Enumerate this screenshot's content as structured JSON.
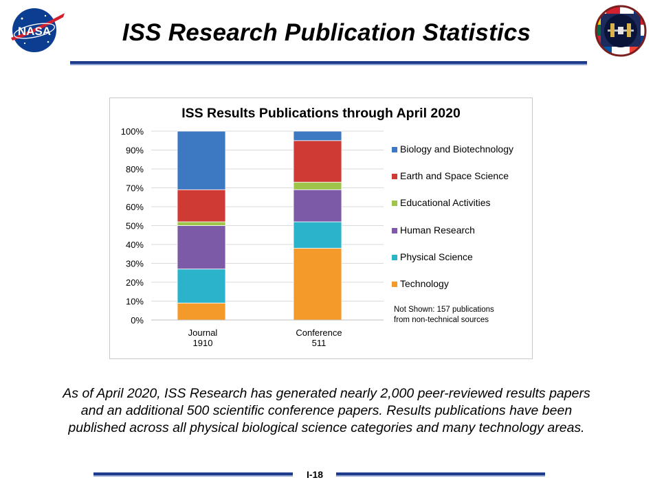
{
  "header": {
    "title": "ISS Research Publication Statistics",
    "nasa_logo_text": "NASA",
    "logo_left": "nasa-meatball-logo",
    "logo_right": "iss-flags-patch-logo"
  },
  "chart_data": {
    "type": "bar",
    "stacked": true,
    "percent_stacked": true,
    "title": "ISS Results Publications through April 2020",
    "categories": [
      "Journal\n1910",
      "Conference\n511"
    ],
    "category_lines": [
      [
        "Journal",
        "1910"
      ],
      [
        "Conference",
        "511"
      ]
    ],
    "series": [
      {
        "name": "Technology",
        "color": "#f39a2b",
        "values": [
          9,
          38
        ]
      },
      {
        "name": "Physical Science",
        "color": "#2bb3cc",
        "values": [
          18,
          14
        ]
      },
      {
        "name": "Human Research",
        "color": "#7c5aa8",
        "values": [
          23,
          17
        ]
      },
      {
        "name": "Educational Activities",
        "color": "#9ec44a",
        "values": [
          2,
          4
        ]
      },
      {
        "name": "Earth and Space Science",
        "color": "#cf3b34",
        "values": [
          17,
          22
        ]
      },
      {
        "name": "Biology and Biotechnology",
        "color": "#3d78c2",
        "values": [
          31,
          5
        ]
      }
    ],
    "legend_order": [
      "Biology and Biotechnology",
      "Earth and Space Science",
      "Educational Activities",
      "Human Research",
      "Physical Science",
      "Technology"
    ],
    "yticks": [
      "0%",
      "10%",
      "20%",
      "30%",
      "40%",
      "50%",
      "60%",
      "70%",
      "80%",
      "90%",
      "100%"
    ],
    "ylim": [
      0,
      100
    ],
    "grid": true,
    "legend_position": "right",
    "note": {
      "line1": "Not Shown: 157 publications",
      "line2": "from non-technical sources"
    }
  },
  "caption": {
    "line1": "As of April 2020, ISS Research has generated nearly 2,000 peer-reviewed results papers",
    "line2": "and an additional 500 scientific conference papers. Results publications have been",
    "line3": "published across all physical biological science categories and many technology areas."
  },
  "footer": {
    "page_number": "I-18"
  }
}
